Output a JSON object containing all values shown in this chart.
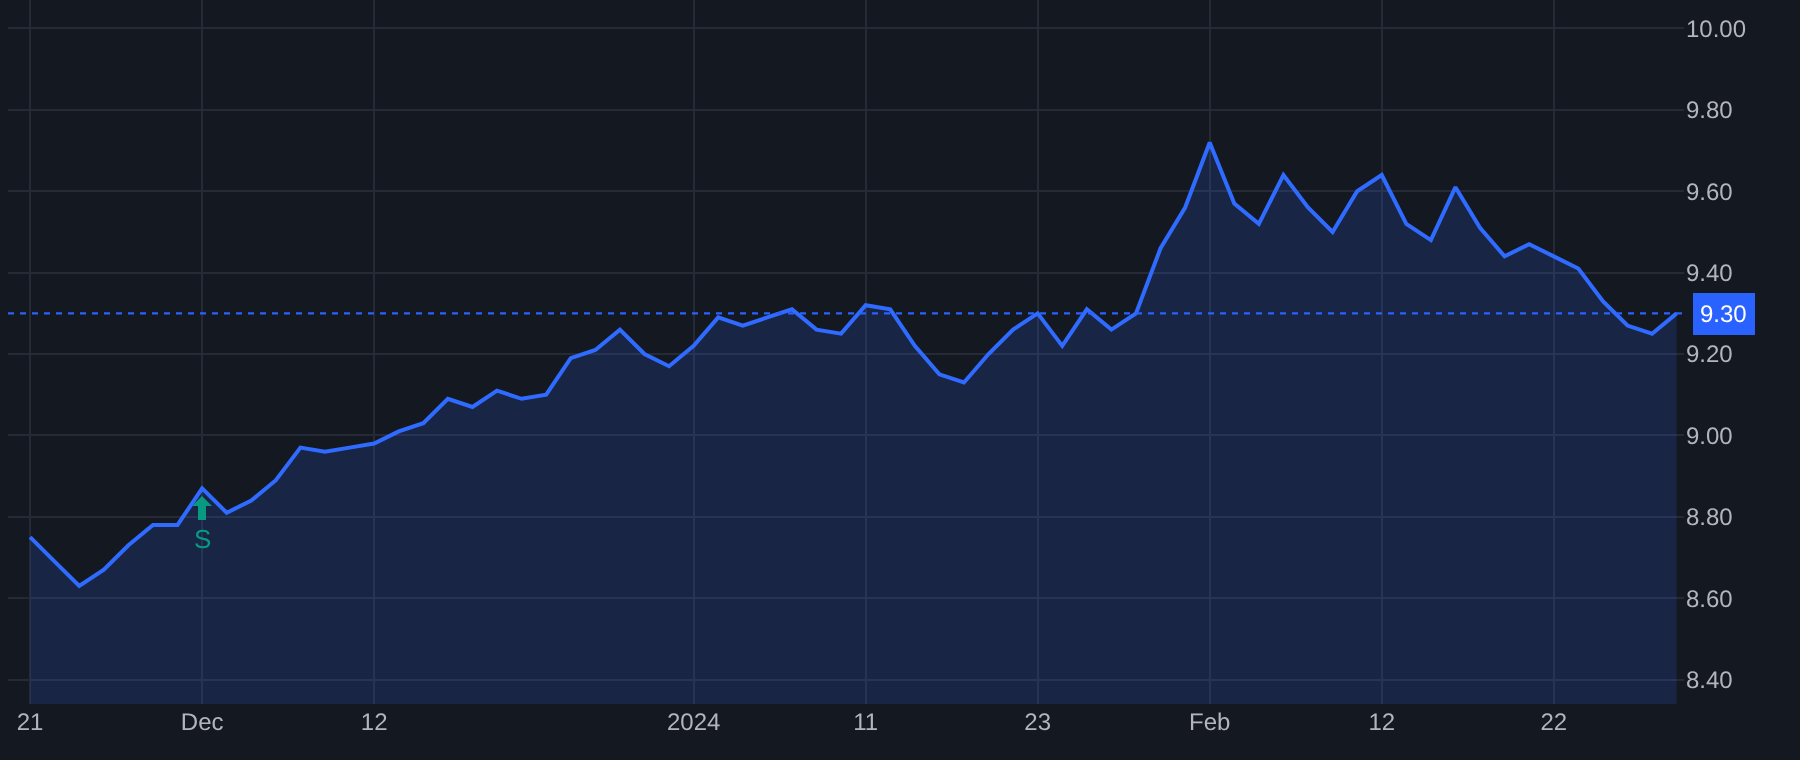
{
  "chart_data": {
    "type": "area",
    "categories": [
      "21",
      null,
      null,
      null,
      null,
      null,
      null,
      "Dec",
      null,
      null,
      null,
      null,
      null,
      null,
      "12",
      null,
      null,
      null,
      null,
      null,
      null,
      null,
      null,
      null,
      null,
      null,
      null,
      "2024",
      null,
      null,
      null,
      null,
      null,
      null,
      "11",
      null,
      null,
      null,
      null,
      null,
      null,
      "23",
      null,
      null,
      null,
      null,
      null,
      null,
      "Feb",
      null,
      null,
      null,
      null,
      null,
      null,
      "12",
      null,
      null,
      null,
      null,
      null,
      null,
      "22",
      null,
      null,
      null,
      null,
      null
    ],
    "series": [
      {
        "color": "#2f6bff",
        "values": [
          8.75,
          8.69,
          8.63,
          8.67,
          8.73,
          8.78,
          8.78,
          8.87,
          8.81,
          8.84,
          8.89,
          8.97,
          8.96,
          8.97,
          8.98,
          9.01,
          9.03,
          9.09,
          9.07,
          9.11,
          9.09,
          9.1,
          9.19,
          9.21,
          9.26,
          9.2,
          9.17,
          9.22,
          9.29,
          9.27,
          9.29,
          9.31,
          9.26,
          9.25,
          9.32,
          9.31,
          9.22,
          9.15,
          9.13,
          9.2,
          9.26,
          9.3,
          9.22,
          9.31,
          9.26,
          9.3,
          9.46,
          9.56,
          9.72,
          9.57,
          9.52,
          9.64,
          9.56,
          9.5,
          9.6,
          9.64,
          9.52,
          9.48,
          9.61,
          9.51,
          9.44,
          9.47,
          9.44,
          9.41,
          9.33,
          9.27,
          9.25,
          9.3
        ]
      }
    ],
    "ylim": [
      8.34,
      10.07
    ],
    "yticks": [
      {
        "value": 8.4,
        "label": "8.40"
      },
      {
        "value": 8.6,
        "label": "8.60"
      },
      {
        "value": 8.8,
        "label": "8.80"
      },
      {
        "value": 9.0,
        "label": "9.00"
      },
      {
        "value": 9.2,
        "label": "9.20"
      },
      {
        "value": 9.4,
        "label": "9.40"
      },
      {
        "value": 9.6,
        "label": "9.60"
      },
      {
        "value": 9.8,
        "label": "9.80"
      },
      {
        "value": 10.0,
        "label": "10.00"
      }
    ],
    "ref_lines": [
      {
        "axis": "y",
        "value": 9.3,
        "label": "9.30",
        "color": "#2962ff",
        "line_style": "dotted"
      }
    ],
    "annotations": [
      {
        "text": "S",
        "x": "Dec",
        "y": 8.87
      }
    ],
    "grid": true,
    "marker": "none",
    "line_style": "solid"
  }
}
